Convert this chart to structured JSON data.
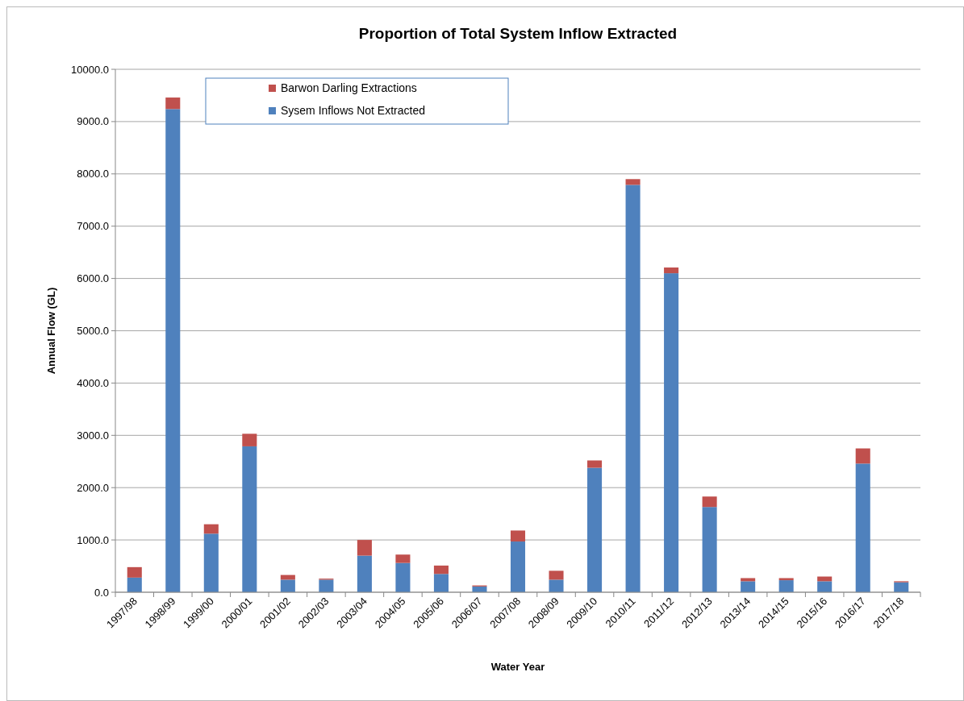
{
  "chart_data": {
    "type": "bar",
    "title": "Proportion of Total System Inflow Extracted",
    "xlabel": "Water Year",
    "ylabel": "Annual Flow (GL)",
    "categories": [
      "1997/98",
      "1998/99",
      "1999/00",
      "2000/01",
      "2001/02",
      "2002/03",
      "2003/04",
      "2004/05",
      "2005/06",
      "2006/07",
      "2007/08",
      "2008/09",
      "2009/10",
      "2010/11",
      "2011/12",
      "2012/13",
      "2013/14",
      "2014/15",
      "2015/16",
      "2016/17",
      "2017/18"
    ],
    "stacked": true,
    "series": [
      {
        "name": "Sysem Inflows Not Extracted",
        "color": "#4f81bd",
        "values": [
          280,
          9240,
          1120,
          2790,
          240,
          240,
          700,
          560,
          350,
          110,
          970,
          240,
          2380,
          7790,
          6100,
          1630,
          210,
          230,
          210,
          2460,
          190
        ]
      },
      {
        "name": "Barwon Darling Extractions",
        "color": "#c0504d",
        "values": [
          200,
          220,
          180,
          240,
          90,
          20,
          300,
          160,
          160,
          20,
          210,
          170,
          140,
          110,
          110,
          200,
          60,
          40,
          90,
          290,
          20
        ]
      }
    ],
    "ylim": [
      0,
      10000
    ],
    "yticks": [
      {
        "value": 0,
        "label": "0.0"
      },
      {
        "value": 1000,
        "label": "1000.0"
      },
      {
        "value": 2000,
        "label": "2000.0"
      },
      {
        "value": 3000,
        "label": "3000.0"
      },
      {
        "value": 4000,
        "label": "4000.0"
      },
      {
        "value": 5000,
        "label": "5000.0"
      },
      {
        "value": 6000,
        "label": "6000.0"
      },
      {
        "value": 7000,
        "label": "7000.0"
      },
      {
        "value": 8000,
        "label": "8000.0"
      },
      {
        "value": 9000,
        "label": "9000.0"
      },
      {
        "value": 10000,
        "label": "10000.0"
      }
    ],
    "grid": "y",
    "legend": "top left"
  }
}
